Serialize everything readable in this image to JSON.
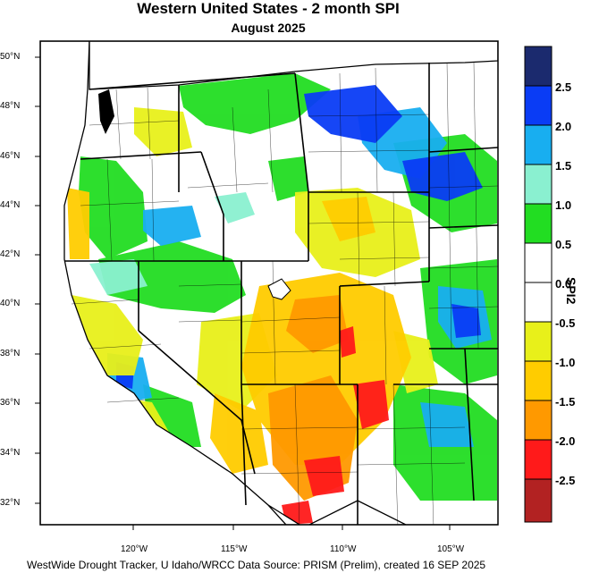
{
  "title": "Western United States - 2 month SPI",
  "subtitle": "August 2025",
  "footer": "WestWide Drought Tracker, U Idaho/WRCC Data Source: PRISM (Prelim), created 16 SEP 2025",
  "latitude_labels": [
    "50°N",
    "48°N",
    "46°N",
    "44°N",
    "42°N",
    "40°N",
    "38°N",
    "36°N",
    "34°N",
    "32°N"
  ],
  "longitude_labels": [
    "120°W",
    "115°W",
    "110°W",
    "105°W"
  ],
  "colorbar": {
    "title": "SPI2",
    "labels": [
      "2.5",
      "2.0",
      "1.5",
      "1.0",
      "0.5",
      "0.0",
      "-0.5",
      "-1.0",
      "-1.5",
      "-2.0",
      "-2.5"
    ],
    "colors": [
      "#1b2a6e",
      "#0a3cf5",
      "#18aef0",
      "#8af0d0",
      "#22dd22",
      "#ffffff",
      "#ffffff",
      "#e8f01a",
      "#ffcc00",
      "#ff9900",
      "#ff1a1a",
      "#b22222"
    ]
  },
  "colors": {
    "wet_strong": "#0a3cf5",
    "wet_mid": "#18aef0",
    "wet_light": "#22dd22",
    "neutral": "#ffffff",
    "dry_light": "#e8f01a",
    "dry_mid": "#ffcc00",
    "dry_strong": "#ff9900",
    "dry_severe": "#ff1a1a"
  }
}
